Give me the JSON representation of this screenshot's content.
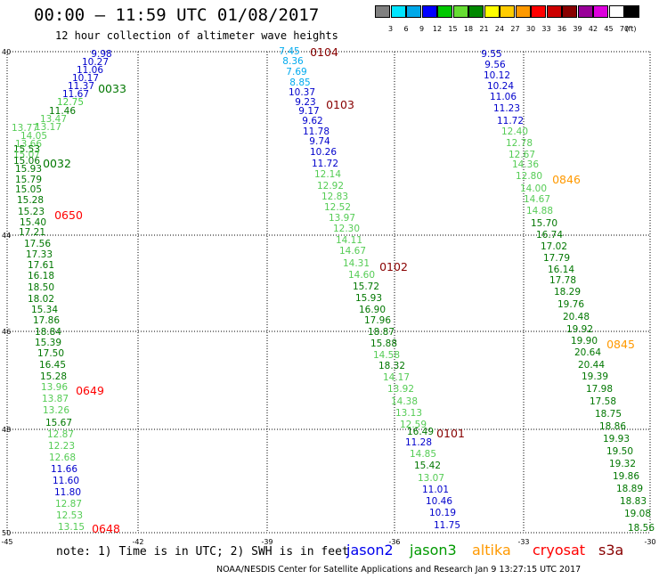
{
  "header": {
    "title": "00:00 – 11:59 UTC 01/08/2017",
    "subtitle": "12 hour collection of altimeter wave heights"
  },
  "color_scale": {
    "unit": "(ft)",
    "bins": [
      {
        "label": "3",
        "color": "#808080"
      },
      {
        "label": "6",
        "color": "#00e5ff"
      },
      {
        "label": "9",
        "color": "#00a8e8"
      },
      {
        "label": "12",
        "color": "#0000ff"
      },
      {
        "label": "15",
        "color": "#00c800"
      },
      {
        "label": "18",
        "color": "#66dd33"
      },
      {
        "label": "21",
        "color": "#008800"
      },
      {
        "label": "24",
        "color": "#ffff00"
      },
      {
        "label": "27",
        "color": "#ffcc00"
      },
      {
        "label": "30",
        "color": "#ff9900"
      },
      {
        "label": "33",
        "color": "#ff0000"
      },
      {
        "label": "36",
        "color": "#cc0000"
      },
      {
        "label": "39",
        "color": "#880000"
      },
      {
        "label": "42",
        "color": "#990099"
      },
      {
        "label": "45",
        "color": "#dd00dd"
      },
      {
        "label": "70",
        "color": "#ffffff"
      },
      {
        "label": "",
        "color": "#000000"
      }
    ]
  },
  "map": {
    "lat_labels": [
      "40",
      "44",
      "46",
      "48",
      "50"
    ],
    "lon_labels": [
      "-45",
      "-42",
      "-39",
      "-36",
      "-33",
      "-30"
    ]
  },
  "tracks": [
    {
      "name": "track-1",
      "points": [
        [
          "9.98",
          "#0000cc"
        ],
        [
          "10.27",
          "#0000cc"
        ],
        [
          "11.06",
          "#0000cc"
        ],
        [
          "10.17",
          "#0000cc"
        ],
        [
          "11.37",
          "#0000cc"
        ],
        [
          "11.67",
          "#0000cc"
        ],
        [
          "12.75",
          "#44cc44"
        ],
        [
          "11.46",
          "#007700"
        ],
        [
          "13.47",
          "#55cc55"
        ],
        [
          "13.17",
          "#55cc55"
        ],
        [
          "13.77",
          "#55cc55"
        ],
        [
          "14.05",
          "#55cc55"
        ],
        [
          "13.66",
          "#55cc55"
        ],
        [
          "15.53",
          "#007700"
        ],
        [
          "15.07",
          "#55cc55"
        ],
        [
          "15.06",
          "#007700"
        ],
        [
          "15.93",
          "#007700"
        ],
        [
          "15.79",
          "#007700"
        ],
        [
          "15.05",
          "#007700"
        ],
        [
          "15.28",
          "#007700"
        ],
        [
          "15.23",
          "#007700"
        ],
        [
          "15.40",
          "#007700"
        ],
        [
          "17.21",
          "#007700"
        ],
        [
          "17.56",
          "#007700"
        ],
        [
          "17.33",
          "#007700"
        ],
        [
          "17.61",
          "#007700"
        ],
        [
          "16.18",
          "#007700"
        ],
        [
          "18.50",
          "#007700"
        ],
        [
          "18.02",
          "#007700"
        ],
        [
          "15.34",
          "#007700"
        ],
        [
          "17.86",
          "#007700"
        ],
        [
          "18.84",
          "#007700"
        ],
        [
          "15.39",
          "#007700"
        ],
        [
          "17.50",
          "#007700"
        ],
        [
          "16.45",
          "#007700"
        ],
        [
          "15.28",
          "#007700"
        ],
        [
          "13.96",
          "#55cc55"
        ],
        [
          "13.87",
          "#55cc55"
        ],
        [
          "13.26",
          "#55cc55"
        ],
        [
          "15.67",
          "#007700"
        ],
        [
          "12.87",
          "#55cc55"
        ],
        [
          "12.23",
          "#55cc55"
        ],
        [
          "12.68",
          "#55cc55"
        ],
        [
          "11.66",
          "#0000cc"
        ],
        [
          "11.60",
          "#0000cc"
        ],
        [
          "11.80",
          "#0000cc"
        ],
        [
          "12.87",
          "#55cc55"
        ],
        [
          "12.53",
          "#55cc55"
        ],
        [
          "13.15",
          "#55cc55"
        ]
      ]
    },
    {
      "name": "track-2",
      "points": [
        [
          "7.45",
          "#00aaee"
        ],
        [
          "8.36",
          "#00aaee"
        ],
        [
          "7.69",
          "#00aaee"
        ],
        [
          "8.85",
          "#00aaee"
        ],
        [
          "10.37",
          "#0000cc"
        ],
        [
          "9.23",
          "#0000cc"
        ],
        [
          "9.17",
          "#0000cc"
        ],
        [
          "9.62",
          "#0000cc"
        ],
        [
          "11.78",
          "#0000cc"
        ],
        [
          "9.74",
          "#0000cc"
        ],
        [
          "10.26",
          "#0000cc"
        ],
        [
          "11.72",
          "#0000cc"
        ],
        [
          "12.14",
          "#55cc55"
        ],
        [
          "12.92",
          "#55cc55"
        ],
        [
          "12.83",
          "#55cc55"
        ],
        [
          "12.52",
          "#55cc55"
        ],
        [
          "13.97",
          "#55cc55"
        ],
        [
          "12.30",
          "#55cc55"
        ],
        [
          "14.11",
          "#55cc55"
        ],
        [
          "14.67",
          "#55cc55"
        ],
        [
          "14.31",
          "#55cc55"
        ],
        [
          "14.60",
          "#55cc55"
        ],
        [
          "15.72",
          "#007700"
        ],
        [
          "15.93",
          "#007700"
        ],
        [
          "16.90",
          "#007700"
        ],
        [
          "17.96",
          "#007700"
        ],
        [
          "18.87",
          "#007700"
        ],
        [
          "15.88",
          "#007700"
        ],
        [
          "14.58",
          "#55cc55"
        ],
        [
          "18.32",
          "#007700"
        ],
        [
          "14.17",
          "#55cc55"
        ],
        [
          "13.92",
          "#55cc55"
        ],
        [
          "14.38",
          "#55cc55"
        ],
        [
          "13.13",
          "#55cc55"
        ],
        [
          "12.59",
          "#55cc55"
        ],
        [
          "16.49",
          "#007700"
        ],
        [
          "11.28",
          "#0000cc"
        ],
        [
          "14.85",
          "#55cc55"
        ],
        [
          "15.42",
          "#007700"
        ],
        [
          "13.07",
          "#55cc55"
        ],
        [
          "11.01",
          "#0000cc"
        ],
        [
          "10.46",
          "#0000cc"
        ],
        [
          "10.19",
          "#0000cc"
        ],
        [
          "11.75",
          "#0000cc"
        ]
      ]
    },
    {
      "name": "track-3",
      "points": [
        [
          "9.55",
          "#0000cc"
        ],
        [
          "9.56",
          "#0000cc"
        ],
        [
          "10.12",
          "#0000cc"
        ],
        [
          "10.24",
          "#0000cc"
        ],
        [
          "11.06",
          "#0000cc"
        ],
        [
          "11.23",
          "#0000cc"
        ],
        [
          "11.72",
          "#0000cc"
        ],
        [
          "12.40",
          "#55cc55"
        ],
        [
          "12.78",
          "#55cc55"
        ],
        [
          "12.67",
          "#55cc55"
        ],
        [
          "14.36",
          "#55cc55"
        ],
        [
          "12.80",
          "#55cc55"
        ],
        [
          "14.00",
          "#55cc55"
        ],
        [
          "14.67",
          "#55cc55"
        ],
        [
          "14.88",
          "#55cc55"
        ],
        [
          "15.70",
          "#007700"
        ],
        [
          "16.74",
          "#007700"
        ],
        [
          "17.02",
          "#007700"
        ],
        [
          "17.79",
          "#007700"
        ],
        [
          "16.14",
          "#007700"
        ],
        [
          "17.78",
          "#007700"
        ],
        [
          "18.29",
          "#007700"
        ],
        [
          "19.76",
          "#007700"
        ],
        [
          "20.48",
          "#007700"
        ],
        [
          "19.92",
          "#007700"
        ],
        [
          "19.90",
          "#007700"
        ],
        [
          "20.64",
          "#007700"
        ],
        [
          "20.44",
          "#007700"
        ],
        [
          "19.39",
          "#007700"
        ],
        [
          "17.98",
          "#007700"
        ],
        [
          "17.58",
          "#007700"
        ],
        [
          "18.75",
          "#007700"
        ],
        [
          "18.86",
          "#007700"
        ],
        [
          "19.93",
          "#007700"
        ],
        [
          "19.50",
          "#007700"
        ],
        [
          "19.32",
          "#007700"
        ],
        [
          "19.86",
          "#007700"
        ],
        [
          "18.89",
          "#007700"
        ],
        [
          "18.83",
          "#007700"
        ],
        [
          "19.08",
          "#007700"
        ],
        [
          "18.56",
          "#007700"
        ]
      ]
    }
  ],
  "time_labels": [
    {
      "text": "0033",
      "color": "#007700"
    },
    {
      "text": "0032",
      "color": "#007700"
    },
    {
      "text": "0650",
      "color": "#ff0000"
    },
    {
      "text": "0649",
      "color": "#ff0000"
    },
    {
      "text": "0648",
      "color": "#ff0000"
    },
    {
      "text": "0104",
      "color": "#880000"
    },
    {
      "text": "0103",
      "color": "#880000"
    },
    {
      "text": "0102",
      "color": "#880000"
    },
    {
      "text": "0101",
      "color": "#880000"
    },
    {
      "text": "0846",
      "color": "#ff9900"
    },
    {
      "text": "0845",
      "color": "#ff9900"
    }
  ],
  "footer": {
    "note": "note: 1) Time is in UTC; 2) SWH is in feet",
    "satellites": [
      {
        "name": "jason2",
        "color": "#0000ee"
      },
      {
        "name": "jason3",
        "color": "#009900"
      },
      {
        "name": "altika",
        "color": "#ff9900"
      },
      {
        "name": "cryosat",
        "color": "#ff0000"
      },
      {
        "name": "s3a",
        "color": "#880000"
      }
    ],
    "credit": "NOAA/NESDIS Center for Satellite Applications and Research   Jan  9 13:27:15 UTC 2017"
  }
}
